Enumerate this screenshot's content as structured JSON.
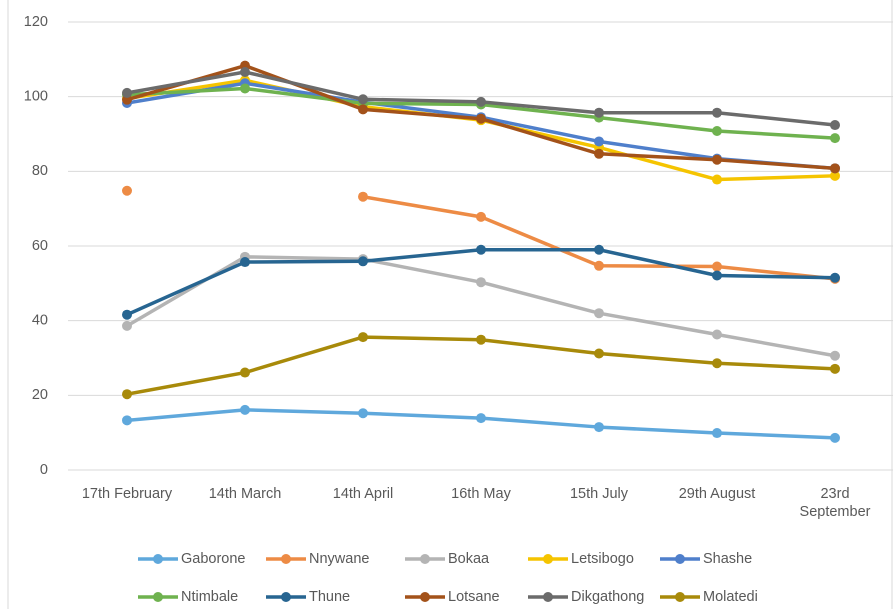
{
  "chart_data": {
    "type": "line",
    "categories": [
      "17th February",
      "14th March",
      "14th April",
      "16th May",
      "15th July",
      "29th August",
      "23rd September"
    ],
    "series": [
      {
        "name": "Gaborone",
        "color": "#5fa8dc",
        "values": [
          13.3,
          16.1,
          15.2,
          13.9,
          11.5,
          9.9,
          8.6
        ]
      },
      {
        "name": "Nnywane",
        "color": "#ed8b45",
        "values": [
          74.8,
          null,
          73.2,
          67.8,
          54.7,
          54.5,
          51.2
        ]
      },
      {
        "name": "Bokaa",
        "color": "#b4b4b4",
        "values": [
          38.6,
          57.1,
          56.5,
          50.3,
          42,
          36.3,
          30.6
        ]
      },
      {
        "name": "Letsibogo",
        "color": "#f5c400",
        "values": [
          99.5,
          104.4,
          97.3,
          93.7,
          86.4,
          77.8,
          78.8
        ]
      },
      {
        "name": "Shashe",
        "color": "#4f7fcb",
        "values": [
          98.3,
          103.6,
          98.5,
          94.5,
          88,
          83.4,
          80.8
        ]
      },
      {
        "name": "Ntimbale",
        "color": "#6fb24f",
        "values": [
          100.5,
          102.2,
          98.2,
          97.9,
          94.4,
          90.8,
          88.9
        ]
      },
      {
        "name": "Thune",
        "color": "#276591",
        "values": [
          41.6,
          55.7,
          55.9,
          59,
          59,
          52.1,
          51.5
        ]
      },
      {
        "name": "Lotsane",
        "color": "#a3521a",
        "values": [
          99.2,
          108.3,
          96.6,
          94.1,
          84.7,
          83.1,
          80.8
        ]
      },
      {
        "name": "Dikgathong",
        "color": "#6b6b6b",
        "values": [
          101,
          106.6,
          99.3,
          98.6,
          95.7,
          95.7,
          92.4
        ]
      },
      {
        "name": "Molatedi",
        "color": "#a88a0a",
        "values": [
          20.3,
          26.1,
          35.6,
          34.9,
          31.2,
          28.6,
          27.1
        ]
      }
    ],
    "ylim": [
      0,
      120
    ],
    "yticks": [
      0,
      20,
      40,
      60,
      80,
      100,
      120
    ],
    "grid": true,
    "legend": "bottom"
  }
}
